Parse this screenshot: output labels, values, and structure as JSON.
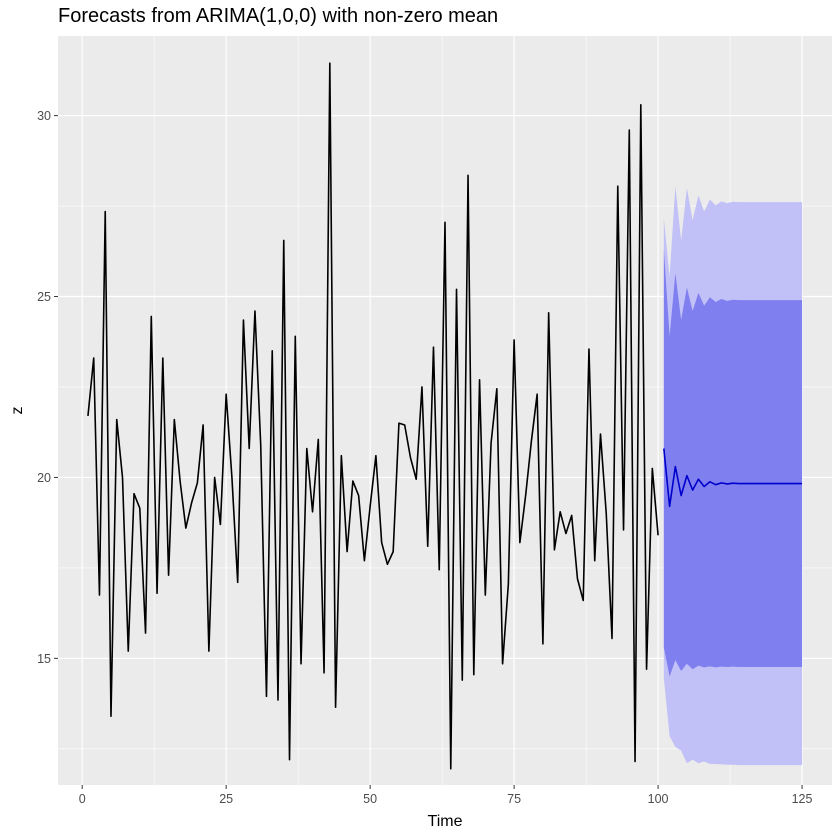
{
  "chart_data": {
    "type": "line",
    "title": "Forecasts from ARIMA(1,0,0) with non-zero mean",
    "xlabel": "Time",
    "ylabel": "z",
    "xlim": [
      -4.2,
      130.2
    ],
    "ylim": [
      11.5,
      32.2
    ],
    "x_ticks": [
      0,
      25,
      50,
      75,
      100,
      125
    ],
    "x_tick_labels": [
      "0",
      "25",
      "50",
      "75",
      "100",
      "125"
    ],
    "y_ticks": [
      15,
      20,
      25,
      30
    ],
    "y_tick_labels": [
      "15",
      "20",
      "25",
      "30"
    ],
    "grid": true,
    "legend": "none",
    "colors": {
      "panel": "#ebebeb",
      "grid": "#ffffff",
      "observed": "#000000",
      "forecast": "#0000cc",
      "pi80": "#7f7fef",
      "pi95": "#c1c1f7"
    },
    "series": [
      {
        "role": "observed",
        "x_start": 1,
        "values": [
          21.7,
          23.3,
          16.75,
          27.35,
          13.4,
          21.6,
          20.0,
          15.2,
          19.55,
          19.15,
          15.7,
          24.45,
          16.8,
          23.3,
          17.3,
          21.6,
          19.9,
          18.6,
          19.3,
          19.85,
          21.45,
          15.2,
          20.0,
          18.7,
          22.3,
          20.0,
          17.1,
          24.35,
          20.8,
          24.6,
          20.9,
          13.95,
          23.5,
          13.85,
          26.55,
          12.2,
          23.9,
          14.85,
          20.8,
          19.05,
          21.05,
          14.6,
          31.45,
          13.65,
          20.6,
          17.95,
          19.9,
          19.5,
          17.7,
          19.2,
          20.6,
          18.2,
          17.6,
          17.95,
          21.5,
          21.45,
          20.55,
          19.95,
          22.5,
          18.1,
          23.6,
          17.45,
          27.05,
          11.95,
          25.2,
          14.4,
          28.35,
          14.55,
          22.7,
          16.75,
          20.95,
          22.45,
          14.85,
          17.05,
          23.8,
          18.2,
          19.5,
          21.0,
          22.3,
          15.4,
          24.55,
          18.0,
          19.05,
          18.45,
          18.95,
          17.2,
          16.6,
          23.55,
          17.7,
          21.2,
          19.0,
          15.55,
          28.05,
          18.55,
          29.6,
          12.15,
          30.3,
          14.7,
          20.25,
          18.4
        ]
      },
      {
        "role": "forecast",
        "x_start": 101,
        "values": [
          20.8,
          19.2,
          20.3,
          19.5,
          20.05,
          19.65,
          19.95,
          19.75,
          19.88,
          19.8,
          19.85,
          19.82,
          19.84,
          19.83,
          19.83,
          19.83,
          19.83,
          19.83,
          19.83,
          19.83,
          19.83,
          19.83,
          19.83,
          19.83,
          19.83
        ],
        "pi80_halfwidth": [
          5.5,
          4.7,
          5.35,
          4.85,
          5.2,
          4.95,
          5.15,
          5.0,
          5.1,
          5.05,
          5.08,
          5.06,
          5.07,
          5.07,
          5.07,
          5.07,
          5.07,
          5.07,
          5.07,
          5.07,
          5.07,
          5.07,
          5.07,
          5.07,
          5.07
        ],
        "pi95_halfwidth": [
          6.35,
          6.35,
          7.75,
          7.05,
          7.95,
          7.45,
          7.85,
          7.6,
          7.8,
          7.72,
          7.78,
          7.76,
          7.78,
          7.78,
          7.78,
          7.78,
          7.78,
          7.78,
          7.78,
          7.78,
          7.78,
          7.78,
          7.78,
          7.78,
          7.78
        ]
      }
    ]
  }
}
